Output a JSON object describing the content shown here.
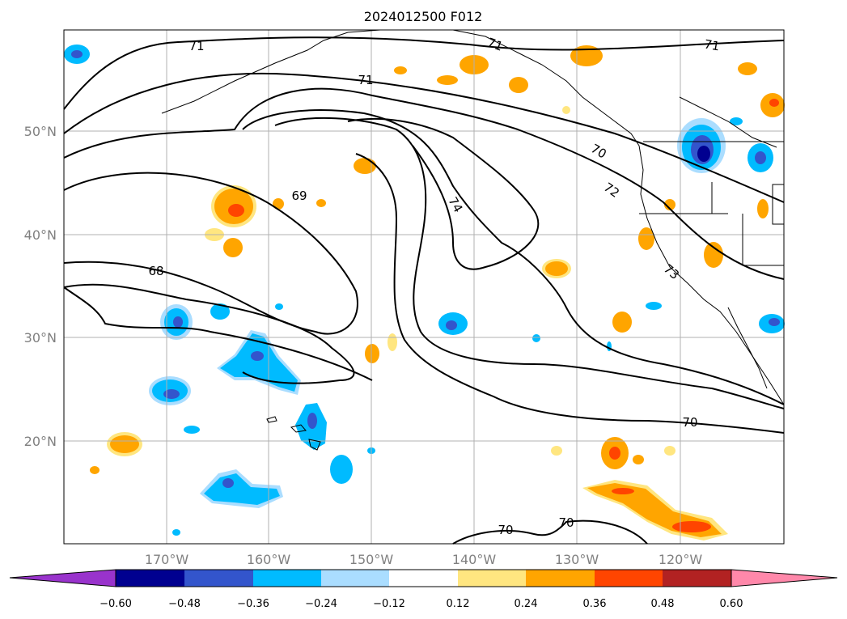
{
  "title": "2024012500 F012",
  "map": {
    "lat_labels": [
      "50°N",
      "40°N",
      "30°N",
      "20°N"
    ],
    "lon_labels": [
      "170°W",
      "160°W",
      "150°W",
      "140°W",
      "130°W",
      "120°W"
    ],
    "contour_labels": [
      "71",
      "71",
      "71",
      "71",
      "69",
      "68",
      "70",
      "72",
      "74",
      "73",
      "70",
      "70",
      "70"
    ],
    "grid": true
  },
  "colorbar": {
    "ticks": [
      "−0.60",
      "−0.48",
      "−0.36",
      "−0.24",
      "−0.12",
      "0.12",
      "0.24",
      "0.36",
      "0.48",
      "0.60"
    ],
    "colors": [
      "#9933cc",
      "#000090",
      "#3355cc",
      "#00bbff",
      "#aaddff",
      "#ffffff",
      "#ffe680",
      "#ffa500",
      "#ff4500",
      "#b22222",
      "#ff88aa"
    ],
    "extend": "both"
  }
}
